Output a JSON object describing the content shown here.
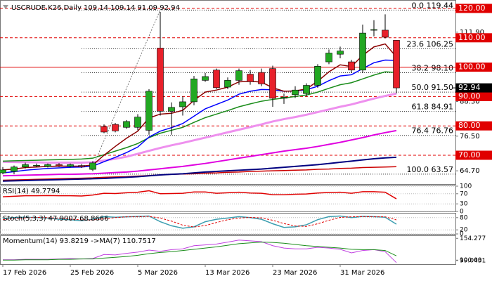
{
  "chart_data": [
    {
      "type": "candlestick",
      "title": "USCRUDE.K26,Daily  109.14 109.14 91.09 92.94",
      "categories": [
        "17 Feb 2026",
        null,
        null,
        null,
        null,
        null,
        "25 Feb 2026",
        null,
        null,
        null,
        null,
        null,
        "5 Mar 2026",
        null,
        null,
        null,
        null,
        null,
        "13 Mar 2026",
        null,
        null,
        null,
        null,
        null,
        "23 Mar 2026",
        null,
        null,
        null,
        null,
        null,
        "31 Mar 2026",
        null,
        null,
        null,
        null,
        null
      ],
      "open": [
        64,
        64.5,
        66,
        66.5,
        66.2,
        66.8,
        66.2,
        66.5,
        65.2,
        79.8,
        80.5,
        79.5,
        79.5,
        78.5,
        106.5,
        85,
        86.5,
        88.2,
        95.5,
        99,
        93.2,
        95.5,
        97.6,
        98.2,
        99.5,
        89.4,
        90.6,
        91,
        93.8,
        101.8,
        104.4,
        101.8,
        99,
        112.6,
        112.6,
        109.14
      ],
      "high": [
        66,
        66.5,
        67.5,
        67.2,
        67.2,
        67.3,
        67.2,
        67,
        68,
        80.5,
        81,
        82,
        84,
        92.5,
        118.8,
        88,
        90,
        97,
        98,
        99.5,
        96.5,
        99.5,
        99,
        99.5,
        100.5,
        91,
        93.5,
        94.5,
        101,
        106,
        107,
        102.5,
        114.5,
        116,
        118,
        109.14
      ],
      "low": [
        63.5,
        63.5,
        65.5,
        66,
        65.8,
        66,
        65.8,
        65.7,
        64.6,
        77.5,
        77.8,
        79,
        78.5,
        77,
        83.5,
        77,
        83.5,
        87,
        95,
        92.5,
        92.5,
        94,
        94,
        93.5,
        86.5,
        87.5,
        89.5,
        90,
        93,
        101,
        103,
        98,
        98,
        110.5,
        109.8,
        91.09
      ],
      "close": [
        65,
        66,
        66.8,
        66.6,
        66.8,
        66.4,
        66.8,
        66.1,
        67.4,
        77.9,
        78.3,
        81.5,
        83,
        91.8,
        85,
        86.3,
        88.2,
        96,
        96.8,
        93,
        95.5,
        98.8,
        95,
        94.3,
        89.4,
        89.8,
        92.2,
        93.8,
        100.3,
        104.8,
        105.5,
        99,
        111.6,
        112.8,
        110.2,
        92.94
      ],
      "up_color": "#22a822",
      "down_color": "#e8202a",
      "ylim": [
        60.19,
        121.67
      ],
      "yticks": [
        {
          "value": 64.7,
          "label": "64.70"
        },
        {
          "value": 76.5,
          "label": "76.50"
        },
        {
          "value": 88.3,
          "label": "88.30"
        },
        {
          "value": 100.1,
          "label": "100.10"
        },
        {
          "value": 111.9,
          "label": "111.90"
        }
      ],
      "series": [
        {
          "color": "#cc0000",
          "width": 1.5,
          "values": [
            61.5,
            61.6,
            61.7,
            61.8,
            61.9,
            62,
            62.1,
            62.2,
            62.3,
            62.5,
            62.6,
            62.7,
            62.9,
            63.1,
            63.3,
            63.5,
            63.6,
            63.7,
            63.9,
            64,
            64.2,
            64.3,
            64.5,
            64.6,
            64.7,
            64.8,
            64.9,
            65,
            65.2,
            65.3,
            65.5,
            65.6,
            65.8,
            65.9,
            66,
            66.1
          ]
        },
        {
          "color": "#000080",
          "width": 2,
          "values": [
            61.2,
            61.3,
            61.4,
            61.5,
            61.6,
            61.7,
            61.8,
            61.9,
            62,
            62.1,
            62.3,
            62.5,
            62.7,
            63,
            63.3,
            63.5,
            63.7,
            64,
            64.3,
            64.5,
            64.7,
            64.9,
            65.1,
            65.3,
            65.6,
            65.9,
            66.2,
            66.5,
            66.8,
            67.2,
            67.6,
            68,
            68.4,
            68.8,
            69.1,
            69.3
          ]
        },
        {
          "color": "#e000e0",
          "width": 2,
          "values": [
            63,
            63.1,
            63.2,
            63.3,
            63.4,
            63.5,
            63.5,
            63.6,
            63.7,
            63.9,
            64.1,
            64.3,
            64.6,
            65,
            65.4,
            65.8,
            66.2,
            66.7,
            67.2,
            67.8,
            68.4,
            69,
            69.6,
            70.2,
            70.8,
            71.4,
            71.9,
            72.4,
            73,
            73.7,
            74.4,
            75.2,
            76,
            76.9,
            77.7,
            78.4
          ]
        },
        {
          "color": "#ee90ee",
          "width": 3,
          "values": [
            67.8,
            67.7,
            67.6,
            67.6,
            67.5,
            67.5,
            67.5,
            67.5,
            67.6,
            68.2,
            68.8,
            69.5,
            70.5,
            71.5,
            72.5,
            73.4,
            74.2,
            75.1,
            76,
            76.9,
            77.8,
            78.7,
            79.6,
            80.5,
            81.5,
            82.3,
            83,
            83.8,
            84.7,
            85.6,
            86.5,
            87.3,
            88.3,
            89.3,
            90.2,
            91
          ]
        },
        {
          "color": "#1a8c1a",
          "width": 1.5,
          "values": [
            68,
            68.1,
            68.2,
            68.3,
            68.4,
            68.5,
            68.6,
            68.7,
            69,
            70.2,
            71.4,
            72.6,
            74,
            76,
            77.5,
            78.5,
            79.5,
            81.2,
            82.8,
            84,
            85.2,
            86.5,
            87.5,
            88.4,
            89,
            89.5,
            90,
            90.5,
            91.5,
            92.8,
            94,
            94.7,
            96,
            97.3,
            98.4,
            98.2
          ]
        },
        {
          "color": "#0000ff",
          "width": 1.5,
          "values": [
            64,
            64.4,
            64.9,
            65.2,
            65.5,
            65.7,
            65.9,
            66,
            66.3,
            67.8,
            69.3,
            70.9,
            72.8,
            76.2,
            78.2,
            79.4,
            80.8,
            83.3,
            85.8,
            87.3,
            88.8,
            90.8,
            91.8,
            92.4,
            92.3,
            91.8,
            91.9,
            92.3,
            93.5,
            95.4,
            97,
            97.4,
            99.5,
            101.5,
            102.4,
            102.3
          ]
        },
        {
          "color": "#8b0000",
          "width": 1.5,
          "values": [
            65,
            65.3,
            65.8,
            66,
            66.2,
            66.3,
            66.3,
            66.3,
            66.7,
            70,
            73,
            75.8,
            78.2,
            82.7,
            84,
            84.3,
            85.3,
            88.7,
            91.5,
            92.2,
            93.2,
            95,
            95.2,
            94.9,
            93,
            91.8,
            91.9,
            92.6,
            95.2,
            98.4,
            100.8,
            100.2,
            104,
            106.9,
            107.9,
            103.5
          ]
        }
      ],
      "fib": [
        {
          "value": 119.44,
          "label": "0.0 119.44"
        },
        {
          "value": 106.25,
          "label": "23.6 106.25"
        },
        {
          "value": 98.1,
          "label": "38.2 98.10"
        },
        {
          "value": 91.5,
          "label": "50.0 91.50"
        },
        {
          "value": 84.91,
          "label": "61.8 84.91"
        },
        {
          "value": 76.76,
          "label": "76.4 76.76"
        },
        {
          "value": 63.57,
          "label": "100.0 63.57"
        }
      ],
      "levels": [
        {
          "value": 120,
          "label": "120.00",
          "style": "dashed"
        },
        {
          "value": 110,
          "label": "110.00",
          "style": "dashed"
        },
        {
          "value": 100,
          "label": "100.00",
          "style": "solid"
        },
        {
          "value": 90,
          "label": "90.00",
          "style": "dashed"
        },
        {
          "value": 80,
          "label": "80.00",
          "style": "dashed"
        },
        {
          "value": 70,
          "label": "70.00",
          "style": "dashed"
        }
      ],
      "level_color": "#e00000",
      "last_price": {
        "value": 92.94,
        "label": "92.94"
      }
    },
    {
      "type": "line",
      "title": "RSI(14) 49.7794",
      "ylim": [
        0,
        100
      ],
      "yticks": [
        100,
        70,
        30,
        0
      ],
      "grid": true,
      "series": [
        {
          "color": "#e00000",
          "width": 1.5,
          "values": [
            58,
            60,
            62,
            62,
            63,
            62,
            62,
            61,
            65,
            72,
            71,
            74,
            76,
            82,
            70,
            71,
            72,
            77,
            77,
            72,
            74,
            76,
            73,
            72,
            66,
            66,
            68,
            69,
            73,
            75,
            76,
            72,
            78,
            78,
            76,
            49.7794
          ]
        }
      ]
    },
    {
      "type": "line",
      "title": "Stoch(5,3,3) 47.9007 68.8666",
      "ylim": [
        0,
        100
      ],
      "yticks": [
        80,
        20,
        0
      ],
      "grid": true,
      "series": [
        {
          "color": "#3c9eb0",
          "width": 1.5,
          "values": [
            75,
            80,
            82,
            80,
            78,
            72,
            70,
            65,
            72,
            85,
            82,
            84,
            86,
            88,
            60,
            40,
            28,
            35,
            60,
            72,
            78,
            85,
            80,
            72,
            50,
            32,
            35,
            45,
            70,
            85,
            88,
            80,
            86,
            85,
            82,
            47.9007
          ]
        },
        {
          "color": "#e00000",
          "width": 1,
          "dash": true,
          "values": [
            70,
            75,
            79,
            81,
            80,
            77,
            73,
            69,
            69,
            74,
            80,
            84,
            84,
            86,
            78,
            63,
            43,
            34,
            41,
            56,
            70,
            78,
            81,
            79,
            67,
            51,
            39,
            37,
            50,
            67,
            81,
            84,
            85,
            84,
            84,
            68.8666
          ]
        }
      ]
    },
    {
      "type": "line",
      "title": "Momentum(14) 93.8219 ->MA(7) 110.7517",
      "ylim": [
        90,
        160
      ],
      "yticks": [
        {
          "value": 154.277,
          "label": "154.277"
        },
        {
          "value": 100,
          "label": "100.00"
        },
        {
          "value": 99.0431,
          "label": "99.0431"
        }
      ],
      "grid": false,
      "series": [
        {
          "color": "#c040e0",
          "width": 1,
          "values": [
            101,
            101,
            102,
            102,
            102,
            103,
            104,
            103,
            104,
            114,
            113,
            117,
            120,
            125,
            122,
            126,
            128,
            136,
            138,
            140,
            145,
            150,
            148,
            146,
            136,
            130,
            128,
            128,
            132,
            130,
            127,
            118,
            124,
            126,
            121,
            93.8219
          ]
        },
        {
          "color": "#1a8c1a",
          "width": 1,
          "values": [
            100,
            100,
            101,
            101,
            101,
            102,
            102,
            103,
            103,
            105,
            107,
            109,
            112,
            116,
            119,
            121,
            124,
            127,
            130,
            133,
            137,
            141,
            143,
            145,
            144,
            142,
            139,
            136,
            134,
            132,
            130,
            127,
            126,
            126,
            124,
            110.7517
          ]
        }
      ]
    }
  ]
}
